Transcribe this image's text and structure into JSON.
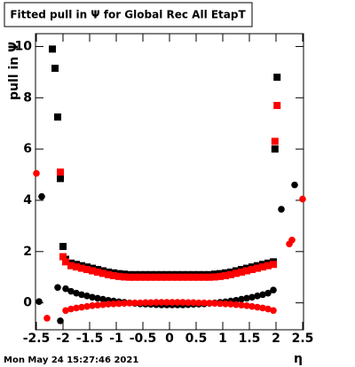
{
  "chart_data": {
    "type": "scatter",
    "title": "Fitted pull in  Ψ  for Global Rec All EtapT",
    "y_label": "pull in  Ψ",
    "x_label": "η",
    "footer": "Mon May 24 15:27:46 2021",
    "xlim": [
      -2.5,
      2.5
    ],
    "ylim": [
      -1.05,
      10.5
    ],
    "xticks": [
      -2.5,
      -2,
      -1.5,
      -1,
      -0.5,
      0,
      0.5,
      1,
      1.5,
      2,
      2.5
    ],
    "yticks": [
      0,
      2,
      4,
      6,
      8,
      10
    ],
    "series": [
      {
        "color": "#000000",
        "marker": "square",
        "x": [
          -2.2,
          -2.15,
          -2.1,
          -2.05,
          -2.0,
          -1.95,
          -1.85,
          -1.75,
          -1.65,
          -1.55,
          -1.45,
          -1.35,
          -1.25,
          -1.15,
          -1.05,
          -0.95,
          -0.85,
          -0.75,
          -0.65,
          -0.55,
          -0.45,
          -0.35,
          -0.25,
          -0.15,
          -0.05,
          0.05,
          0.15,
          0.25,
          0.35,
          0.45,
          0.55,
          0.65,
          0.75,
          0.85,
          0.95,
          1.05,
          1.15,
          1.25,
          1.35,
          1.45,
          1.55,
          1.65,
          1.75,
          1.85,
          1.95,
          1.98,
          2.02
        ],
        "values": [
          9.9,
          9.15,
          7.25,
          4.85,
          2.2,
          1.7,
          1.55,
          1.5,
          1.45,
          1.4,
          1.35,
          1.3,
          1.25,
          1.2,
          1.17,
          1.14,
          1.12,
          1.1,
          1.1,
          1.1,
          1.1,
          1.1,
          1.1,
          1.1,
          1.1,
          1.1,
          1.1,
          1.1,
          1.1,
          1.1,
          1.1,
          1.1,
          1.1,
          1.12,
          1.14,
          1.17,
          1.2,
          1.25,
          1.3,
          1.35,
          1.4,
          1.45,
          1.5,
          1.55,
          1.6,
          6.0,
          8.8
        ]
      },
      {
        "color": "#ff0000",
        "marker": "square",
        "x": [
          -2.05,
          -2.0,
          -1.95,
          -1.85,
          -1.75,
          -1.65,
          -1.55,
          -1.45,
          -1.35,
          -1.25,
          -1.15,
          -1.05,
          -0.95,
          -0.85,
          -0.75,
          -0.65,
          -0.55,
          -0.45,
          -0.35,
          -0.25,
          -0.15,
          -0.05,
          0.05,
          0.15,
          0.25,
          0.35,
          0.45,
          0.55,
          0.65,
          0.75,
          0.85,
          0.95,
          1.05,
          1.15,
          1.25,
          1.35,
          1.45,
          1.55,
          1.65,
          1.75,
          1.85,
          1.95,
          1.98,
          2.02
        ],
        "values": [
          5.1,
          1.8,
          1.6,
          1.45,
          1.4,
          1.35,
          1.3,
          1.25,
          1.2,
          1.15,
          1.1,
          1.06,
          1.03,
          1.01,
          1.0,
          1.0,
          1.0,
          1.0,
          1.0,
          1.0,
          1.0,
          1.0,
          1.0,
          1.0,
          1.0,
          1.0,
          1.0,
          1.0,
          1.0,
          1.0,
          1.01,
          1.03,
          1.06,
          1.1,
          1.15,
          1.2,
          1.25,
          1.3,
          1.35,
          1.4,
          1.45,
          1.5,
          6.3,
          7.7
        ]
      },
      {
        "color": "#000000",
        "marker": "circle",
        "x": [
          -2.45,
          -2.4,
          -2.1,
          -2.05,
          -1.95,
          -1.85,
          -1.75,
          -1.65,
          -1.55,
          -1.45,
          -1.35,
          -1.25,
          -1.15,
          -1.05,
          -0.95,
          -0.85,
          -0.75,
          -0.65,
          -0.55,
          -0.45,
          -0.35,
          -0.25,
          -0.15,
          -0.05,
          0.05,
          0.15,
          0.25,
          0.35,
          0.45,
          0.55,
          0.65,
          0.75,
          0.85,
          0.95,
          1.05,
          1.15,
          1.25,
          1.35,
          1.45,
          1.55,
          1.65,
          1.75,
          1.85,
          1.95,
          2.1,
          2.35
        ],
        "values": [
          0.05,
          4.15,
          0.6,
          -0.7,
          0.55,
          0.45,
          0.38,
          0.32,
          0.27,
          0.22,
          0.18,
          0.14,
          0.1,
          0.07,
          0.04,
          0.02,
          0,
          -0.02,
          -0.04,
          -0.05,
          -0.06,
          -0.07,
          -0.08,
          -0.08,
          -0.08,
          -0.08,
          -0.08,
          -0.07,
          -0.06,
          -0.05,
          -0.04,
          -0.02,
          0,
          0.02,
          0.04,
          0.07,
          0.1,
          0.14,
          0.18,
          0.22,
          0.27,
          0.32,
          0.38,
          0.5,
          3.65,
          4.6
        ]
      },
      {
        "color": "#ff0000",
        "marker": "circle",
        "x": [
          -2.5,
          -2.3,
          -1.95,
          -1.85,
          -1.75,
          -1.65,
          -1.55,
          -1.45,
          -1.35,
          -1.25,
          -1.15,
          -1.05,
          -0.95,
          -0.85,
          -0.75,
          -0.65,
          -0.55,
          -0.45,
          -0.35,
          -0.25,
          -0.15,
          -0.05,
          0.05,
          0.15,
          0.25,
          0.35,
          0.45,
          0.55,
          0.65,
          0.75,
          0.85,
          0.95,
          1.05,
          1.15,
          1.25,
          1.35,
          1.45,
          1.55,
          1.65,
          1.75,
          1.85,
          1.95,
          2.25,
          2.3,
          2.5
        ],
        "values": [
          5.05,
          -0.6,
          -0.3,
          -0.24,
          -0.2,
          -0.17,
          -0.14,
          -0.11,
          -0.09,
          -0.07,
          -0.05,
          -0.04,
          -0.03,
          -0.02,
          -0.01,
          0,
          0,
          0.01,
          0.01,
          0.02,
          0.02,
          0.02,
          0.02,
          0.02,
          0.02,
          0.01,
          0.01,
          0,
          0,
          -0.01,
          -0.02,
          -0.03,
          -0.04,
          -0.05,
          -0.07,
          -0.09,
          -0.11,
          -0.14,
          -0.17,
          -0.2,
          -0.24,
          -0.3,
          2.3,
          2.45,
          4.05
        ]
      }
    ]
  }
}
